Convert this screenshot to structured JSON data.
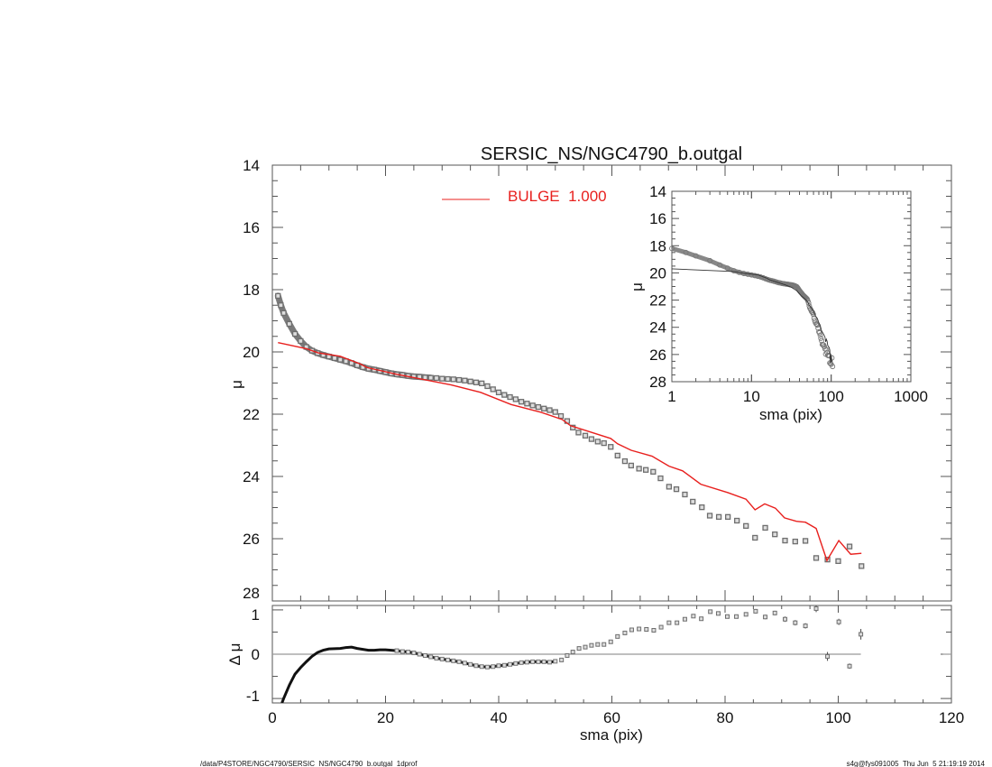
{
  "chart_data": [
    {
      "type": "scatter",
      "panel": "main",
      "title": "SERSIC_NS/NGC4790_b.outgal",
      "xlabel": "sma (pix)",
      "ylabel": "μ",
      "xlim": [
        0,
        120
      ],
      "ylim": [
        28,
        14
      ],
      "y_inverted": true,
      "grid": false,
      "x_ticks": [
        "0",
        "20",
        "40",
        "60",
        "80",
        "100",
        "120"
      ],
      "y_ticks": [
        "14",
        "16",
        "18",
        "20",
        "22",
        "24",
        "26",
        "28"
      ],
      "legend": {
        "placement": "top-center",
        "entries": [
          {
            "label": "BULGE  1.000",
            "color": "#e8201e"
          }
        ]
      },
      "series": [
        {
          "kind": "data-points",
          "marker": "square",
          "color": "#6e6e6e",
          "x": [
            1,
            1.5,
            2,
            3,
            4,
            5,
            6,
            7,
            8,
            9,
            10,
            11,
            12,
            13,
            14,
            15,
            16,
            17,
            18,
            19,
            20,
            21,
            22,
            23,
            24,
            25,
            26,
            27,
            28,
            29,
            30,
            31,
            32,
            33,
            34,
            35,
            36,
            37,
            38,
            39,
            40,
            41,
            42,
            43,
            44,
            45,
            46,
            47,
            48,
            49,
            50,
            51,
            52.1,
            53.1,
            54.1,
            55.3,
            56.4,
            57.5,
            58.6,
            59.8,
            61.0,
            62.3,
            63.4,
            64.8,
            66.0,
            67.3,
            68.6,
            70.1,
            71.4,
            72.9,
            74.3,
            75.9,
            77.3,
            78.9,
            80.5,
            82.1,
            83.7,
            85.3,
            87.1,
            88.8,
            90.6,
            92.4,
            94.2,
            96.1,
            98.1,
            100.0,
            102.0,
            104.1
          ],
          "y": [
            18.2,
            18.5,
            18.75,
            19.1,
            19.42,
            19.65,
            19.84,
            19.96,
            20.04,
            20.1,
            20.15,
            20.2,
            20.25,
            20.3,
            20.36,
            20.43,
            20.49,
            20.54,
            20.57,
            20.61,
            20.65,
            20.69,
            20.72,
            20.74,
            20.77,
            20.79,
            20.8,
            20.82,
            20.83,
            20.84,
            20.86,
            20.87,
            20.88,
            20.9,
            20.92,
            20.95,
            20.98,
            21.01,
            21.1,
            21.2,
            21.3,
            21.38,
            21.45,
            21.52,
            21.6,
            21.66,
            21.72,
            21.77,
            21.82,
            21.87,
            21.93,
            22.06,
            22.22,
            22.43,
            22.59,
            22.69,
            22.8,
            22.88,
            22.93,
            23.05,
            23.33,
            23.51,
            23.65,
            23.75,
            23.79,
            23.85,
            24.06,
            24.33,
            24.41,
            24.58,
            24.81,
            24.99,
            25.26,
            25.3,
            25.3,
            25.42,
            25.59,
            25.97,
            25.65,
            25.86,
            26.06,
            26.09,
            26.07,
            26.62,
            26.67,
            26.72,
            26.25,
            26.88
          ]
        },
        {
          "kind": "model-line",
          "name": "BULGE  1.000",
          "color": "#e8201e",
          "x": [
            1,
            6.1,
            8.1,
            12,
            15.6,
            16.7,
            22,
            26.3,
            31.6,
            36.8,
            42.2,
            47.5,
            51.2,
            52.7,
            59.8,
            61,
            63.4,
            67.1,
            70.1,
            72.5,
            75.7,
            80.5,
            83.7,
            85.3,
            87,
            88.9,
            90.5,
            92.6,
            94.2,
            96.1,
            98,
            100.1,
            102.2,
            104.1
          ],
          "y": [
            19.7,
            19.9,
            20.03,
            20.14,
            20.39,
            20.5,
            20.72,
            20.87,
            21.06,
            21.3,
            21.69,
            21.94,
            22.17,
            22.37,
            22.78,
            22.95,
            23.16,
            23.35,
            23.67,
            23.82,
            24.25,
            24.52,
            24.73,
            25.07,
            24.88,
            25.02,
            25.33,
            25.44,
            25.47,
            25.67,
            26.7,
            26.06,
            26.5,
            26.47
          ]
        }
      ]
    },
    {
      "type": "scatter",
      "panel": "residual",
      "xlabel": "sma (pix)",
      "ylabel": "Δ μ",
      "xlim": [
        0,
        120
      ],
      "ylim": [
        -1.1,
        1.1
      ],
      "x_ticks": [
        "0",
        "20",
        "40",
        "60",
        "80",
        "100",
        "120"
      ],
      "y_ticks": [
        "1",
        "0",
        "-1"
      ],
      "reference_line": 0,
      "series": [
        {
          "kind": "residual-curve",
          "color": "#111111",
          "x": [
            1.7,
            2,
            3,
            4,
            5,
            6,
            7,
            8,
            9,
            10,
            12,
            13,
            14,
            15,
            16,
            17,
            18,
            19,
            20,
            21,
            22,
            23,
            24,
            25,
            26,
            27,
            28,
            29,
            30,
            31,
            32,
            33,
            34,
            35,
            36,
            37,
            38,
            39,
            40,
            41,
            42,
            43,
            44,
            45,
            46,
            47,
            48,
            49,
            50
          ],
          "y": [
            -1.1,
            -1.0,
            -0.7,
            -0.45,
            -0.3,
            -0.17,
            -0.05,
            0.04,
            0.09,
            0.12,
            0.13,
            0.15,
            0.16,
            0.13,
            0.11,
            0.09,
            0.09,
            0.1,
            0.1,
            0.09,
            0.08,
            0.06,
            0.05,
            0.03,
            0.0,
            -0.03,
            -0.06,
            -0.09,
            -0.11,
            -0.13,
            -0.15,
            -0.17,
            -0.2,
            -0.23,
            -0.26,
            -0.28,
            -0.29,
            -0.28,
            -0.26,
            -0.25,
            -0.23,
            -0.21,
            -0.19,
            -0.18,
            -0.17,
            -0.17,
            -0.17,
            -0.18,
            -0.16
          ]
        },
        {
          "kind": "residual-points",
          "marker": "square",
          "color": "#6e6e6e",
          "x": [
            51.1,
            52.1,
            53.1,
            54.2,
            55.3,
            56.4,
            57.5,
            58.6,
            59.8,
            61.0,
            62.3,
            63.5,
            64.8,
            66.1,
            67.4,
            68.7,
            70.1,
            71.5,
            72.9,
            74.4,
            75.8,
            77.4,
            78.8,
            80.4,
            82.0,
            83.7,
            85.4,
            87.1,
            88.8,
            90.6,
            92.4,
            94.2,
            96.1,
            98.1,
            100.1,
            102.0,
            104.0
          ],
          "y": [
            -0.13,
            -0.03,
            0.05,
            0.13,
            0.16,
            0.2,
            0.22,
            0.22,
            0.28,
            0.4,
            0.48,
            0.55,
            0.57,
            0.56,
            0.54,
            0.61,
            0.71,
            0.71,
            0.79,
            0.86,
            0.8,
            0.96,
            0.92,
            0.85,
            0.85,
            0.9,
            0.97,
            0.84,
            0.93,
            0.79,
            0.71,
            0.64,
            1.03,
            -0.05,
            0.73,
            -0.27,
            0.45
          ],
          "err": [
            0.01,
            0.01,
            0.01,
            0.01,
            0.01,
            0.01,
            0.01,
            0.01,
            0.01,
            0.01,
            0.01,
            0.01,
            0.01,
            0.01,
            0.01,
            0.01,
            0.01,
            0.01,
            0.02,
            0.02,
            0.02,
            0.03,
            0.03,
            0.03,
            0.03,
            0.04,
            0.05,
            0.05,
            0.05,
            0.06,
            0.06,
            0.06,
            0.08,
            0.1,
            0.07,
            0.06,
            0.12
          ]
        }
      ]
    },
    {
      "type": "scatter",
      "panel": "inset",
      "xlabel": "sma (pix)",
      "ylabel": "μ",
      "x_scale": "log",
      "xlim": [
        1,
        1000
      ],
      "ylim": [
        28,
        14
      ],
      "y_inverted": true,
      "x_ticks": [
        "1",
        "10",
        "100",
        "1000"
      ],
      "y_ticks": [
        "14",
        "16",
        "18",
        "20",
        "22",
        "24",
        "26",
        "28"
      ],
      "series_source": "same data points (circles) and model line (dark) as main panel"
    }
  ],
  "footer": {
    "path": "/data/P4STORE/NGC4790/SERSIC_NS/NGC4790_b.outgal_1dprof",
    "stamp": "s4g@fys091005  Thu Jun  5 21:19:19 2014"
  }
}
